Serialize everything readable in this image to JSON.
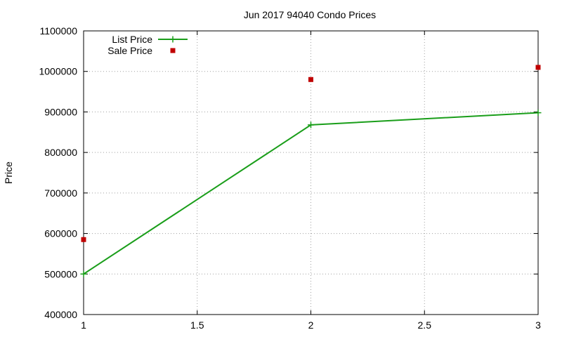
{
  "chart_data": {
    "type": "line",
    "title": "Jun 2017 94040 Condo Prices",
    "xlabel": "",
    "ylabel": "Price",
    "xlim": [
      1,
      3
    ],
    "ylim": [
      400000,
      1100000
    ],
    "xticks": [
      1,
      1.5,
      2,
      2.5,
      3
    ],
    "xtick_labels": [
      "1",
      "1.5",
      "2",
      "2.5",
      "3"
    ],
    "yticks": [
      400000,
      500000,
      600000,
      700000,
      800000,
      900000,
      1000000,
      1100000
    ],
    "ytick_labels": [
      "400000",
      "500000",
      "600000",
      "700000",
      "800000",
      "900000",
      "1000000",
      "1100000"
    ],
    "grid": true,
    "legend_position": "top-left",
    "series": [
      {
        "name": "List Price",
        "style": "linespoints",
        "marker": "plus",
        "color": "#1a9e1a",
        "x": [
          1,
          2,
          3
        ],
        "y": [
          500000,
          868000,
          898000
        ]
      },
      {
        "name": "Sale Price",
        "style": "points",
        "marker": "square",
        "color": "#c00000",
        "x": [
          1,
          2,
          3
        ],
        "y": [
          585000,
          980000,
          1010000
        ]
      }
    ]
  }
}
